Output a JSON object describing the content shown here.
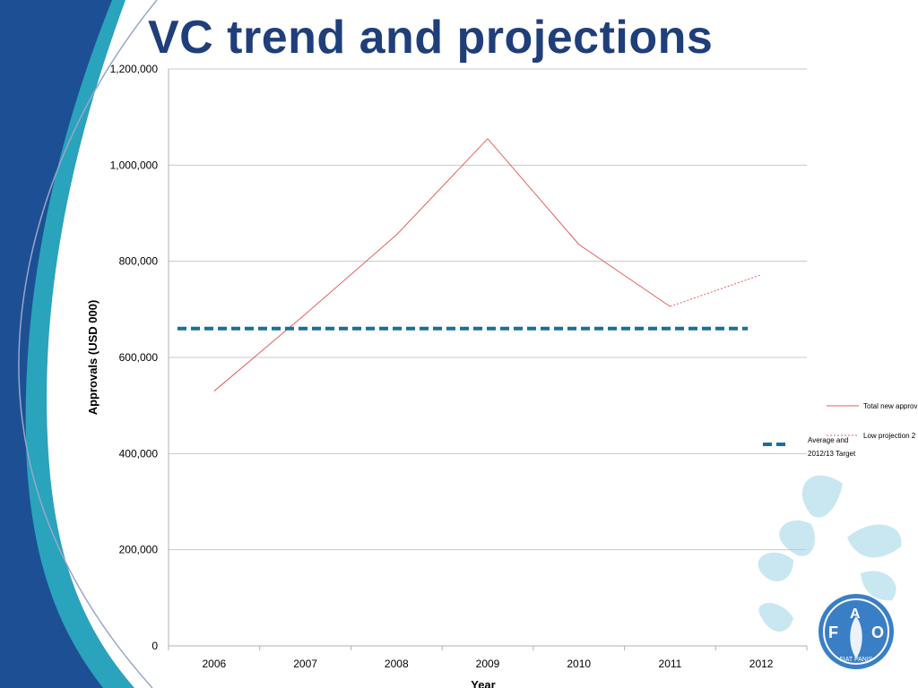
{
  "slide": {
    "title": "VC trend and projections"
  },
  "logo": {
    "letters": [
      "F",
      "A",
      "O"
    ],
    "motto": "FIAT PANIS"
  },
  "colors": {
    "title": "#1f3e7a",
    "band_dark": "#1d4f94",
    "band_teal": "#2aa3bd",
    "total_line": "#e06060",
    "projection_line": "#e06060",
    "target_line": "#1a6f96",
    "leaf": "#bfe3ee"
  },
  "chart_data": {
    "type": "line",
    "x": [
      "2006",
      "2007",
      "2008",
      "2009",
      "2010",
      "2011",
      "2012"
    ],
    "xlabel": "Year",
    "ylabel": "Approvals (USD 000)",
    "ylim": [
      0,
      1200000
    ],
    "yticks": [
      0,
      200000,
      400000,
      600000,
      800000,
      1000000,
      1200000
    ],
    "ytick_labels": [
      "0",
      "200,000",
      "400,000",
      "600,000",
      "800,000",
      "1,000,000",
      "1,200,000"
    ],
    "grid": true,
    "legend_position": "right",
    "series": [
      {
        "name": "Total new approv",
        "style": "solid",
        "x": [
          "2006",
          "2007",
          "2008",
          "2009",
          "2010",
          "2011"
        ],
        "values": [
          530000,
          690000,
          855000,
          1055000,
          835000,
          706000
        ]
      },
      {
        "name": "Low projection 2",
        "style": "dotted",
        "x": [
          "2011",
          "2012"
        ],
        "values": [
          706000,
          772000
        ]
      },
      {
        "name": "Average and 2012/13 Target",
        "name_lines": [
          "Average and",
          "2012/13 Target"
        ],
        "style": "dashed",
        "x": [
          "2006",
          "2012"
        ],
        "values": [
          660000,
          660000
        ]
      }
    ]
  }
}
